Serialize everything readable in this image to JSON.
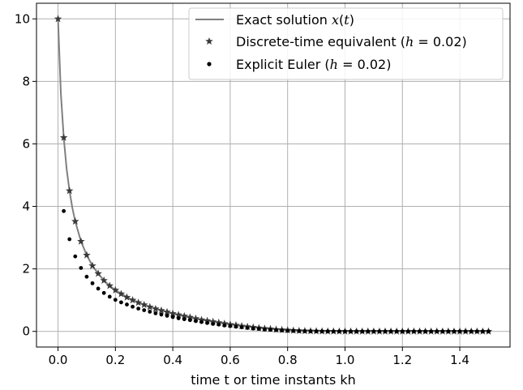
{
  "chart_data": {
    "type": "line",
    "xlabel_parts": [
      "time ",
      "t",
      " or time instants ",
      "kh"
    ],
    "ylabel": "",
    "xlim": [
      -0.075,
      1.575
    ],
    "ylim": [
      -0.5,
      10.5
    ],
    "xticks": [
      0.0,
      0.2,
      0.4,
      0.6,
      0.8,
      1.0,
      1.2,
      1.4
    ],
    "xtick_labels": [
      "0.0",
      "0.2",
      "0.4",
      "0.6",
      "0.8",
      "1.0",
      "1.2",
      "1.4"
    ],
    "yticks": [
      0,
      2,
      4,
      6,
      8,
      10
    ],
    "ytick_labels": [
      "0",
      "2",
      "4",
      "6",
      "8",
      "10"
    ],
    "grid": true,
    "legend_position": "top-right",
    "series": [
      {
        "name_parts": [
          "Exact solution ",
          "x",
          "(",
          "t",
          ")"
        ],
        "style": "line",
        "color": "#808080",
        "x": [
          0,
          0.01,
          0.02,
          0.03,
          0.04,
          0.05,
          0.06,
          0.08,
          0.1,
          0.12,
          0.14,
          0.16,
          0.18,
          0.2,
          0.25,
          0.3,
          0.35,
          0.4,
          0.45,
          0.5,
          0.55,
          0.6,
          0.65,
          0.7,
          0.75,
          0.8,
          0.85,
          0.9,
          1.0,
          1.1,
          1.2,
          1.3,
          1.4,
          1.5
        ],
        "y": [
          10.0,
          7.6,
          6.2,
          5.2,
          4.5,
          3.95,
          3.52,
          2.88,
          2.44,
          2.1,
          1.85,
          1.63,
          1.46,
          1.32,
          1.05,
          0.85,
          0.7,
          0.57,
          0.46,
          0.37,
          0.29,
          0.22,
          0.16,
          0.11,
          0.07,
          0.04,
          0.02,
          0.01,
          0.0,
          0.0,
          0.0,
          0.0,
          0.0,
          0.0
        ]
      },
      {
        "name_parts": [
          "Discrete-time equivalent (",
          "h",
          " = 0.02)"
        ],
        "style": "star",
        "color": "#3a3a3a",
        "x": [
          0.0,
          0.02,
          0.04,
          0.06,
          0.08,
          0.1,
          0.12,
          0.14,
          0.16,
          0.18,
          0.2,
          0.22,
          0.24,
          0.26,
          0.28,
          0.3,
          0.32,
          0.34,
          0.36,
          0.38,
          0.4,
          0.42,
          0.44,
          0.46,
          0.48,
          0.5,
          0.52,
          0.54,
          0.56,
          0.58,
          0.6,
          0.62,
          0.64,
          0.66,
          0.68,
          0.7,
          0.72,
          0.74,
          0.76,
          0.78,
          0.8,
          0.82,
          0.84,
          0.86,
          0.88,
          0.9,
          0.92,
          0.94,
          0.96,
          0.98,
          1.0,
          1.02,
          1.04,
          1.06,
          1.08,
          1.1,
          1.12,
          1.14,
          1.16,
          1.18,
          1.2,
          1.22,
          1.24,
          1.26,
          1.28,
          1.3,
          1.32,
          1.34,
          1.36,
          1.38,
          1.4,
          1.42,
          1.44,
          1.46,
          1.48,
          1.5
        ],
        "y": [
          10.0,
          6.2,
          4.5,
          3.52,
          2.88,
          2.44,
          2.1,
          1.85,
          1.63,
          1.46,
          1.32,
          1.2,
          1.09,
          1.0,
          0.92,
          0.85,
          0.78,
          0.72,
          0.67,
          0.62,
          0.57,
          0.53,
          0.49,
          0.45,
          0.41,
          0.37,
          0.34,
          0.31,
          0.28,
          0.25,
          0.22,
          0.2,
          0.17,
          0.15,
          0.13,
          0.11,
          0.09,
          0.08,
          0.06,
          0.05,
          0.04,
          0.03,
          0.02,
          0.015,
          0.01,
          0.008,
          0.005,
          0.003,
          0.002,
          0.001,
          0.0,
          0.0,
          0.0,
          0.0,
          0.0,
          0.0,
          0.0,
          0.0,
          0.0,
          0.0,
          0.0,
          0.0,
          0.0,
          0.0,
          0.0,
          0.0,
          0.0,
          0.0,
          0.0,
          0.0,
          0.0,
          0.0,
          0.0,
          0.0,
          0.0,
          0.0
        ]
      },
      {
        "name_parts": [
          "Explicit Euler (",
          "h",
          " = 0.02)"
        ],
        "style": "dot",
        "color": "#000000",
        "x": [
          0.02,
          0.04,
          0.06,
          0.08,
          0.1,
          0.12,
          0.14,
          0.16,
          0.18,
          0.2,
          0.22,
          0.24,
          0.26,
          0.28,
          0.3,
          0.32,
          0.34,
          0.36,
          0.38,
          0.4,
          0.42,
          0.44,
          0.46,
          0.48,
          0.5,
          0.52,
          0.54,
          0.56,
          0.58,
          0.6,
          0.62,
          0.64,
          0.66,
          0.68,
          0.7,
          0.72,
          0.74,
          0.76,
          0.78,
          0.8,
          0.82,
          0.84,
          0.86,
          0.88,
          0.9,
          0.92,
          0.94,
          0.96,
          0.98,
          1.0,
          1.02,
          1.04,
          1.06,
          1.08,
          1.1,
          1.12,
          1.14,
          1.16,
          1.18,
          1.2,
          1.22,
          1.24,
          1.26,
          1.28,
          1.3,
          1.32,
          1.34,
          1.36,
          1.38,
          1.4,
          1.42,
          1.44,
          1.46,
          1.48,
          1.5
        ],
        "y": [
          3.85,
          2.95,
          2.4,
          2.03,
          1.75,
          1.54,
          1.37,
          1.23,
          1.11,
          1.01,
          0.93,
          0.86,
          0.79,
          0.73,
          0.68,
          0.63,
          0.58,
          0.54,
          0.5,
          0.46,
          0.42,
          0.39,
          0.36,
          0.33,
          0.3,
          0.27,
          0.24,
          0.22,
          0.19,
          0.17,
          0.15,
          0.13,
          0.11,
          0.09,
          0.08,
          0.06,
          0.05,
          0.04,
          0.03,
          0.02,
          0.015,
          0.01,
          0.007,
          0.005,
          0.003,
          0.002,
          0.001,
          0.0,
          0.0,
          0.0,
          0.0,
          0.0,
          0.0,
          0.0,
          0.0,
          0.0,
          0.0,
          0.0,
          0.0,
          0.0,
          0.0,
          0.0,
          0.0,
          0.0,
          0.0,
          0.0,
          0.0,
          0.0,
          0.0,
          0.0,
          0.0,
          0.0,
          0.0,
          0.0,
          0.0
        ]
      }
    ]
  }
}
